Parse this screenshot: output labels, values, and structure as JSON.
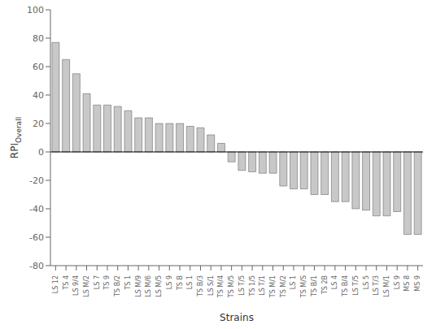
{
  "chart_data": {
    "type": "bar",
    "x_label": "Strains",
    "y_label": "RPI",
    "y_label_sub": "Overall",
    "categories": [
      "LS 12",
      "TS 4",
      "LS 9/4",
      "LS M/2",
      "LS 7",
      "TS 9",
      "TS B/2",
      "TS 1",
      "LS M/9",
      "LS M/6",
      "LS M/5",
      "LS 9",
      "TS B",
      "LS 1",
      "TS B/3",
      "LS S/1",
      "TS M/4",
      "TS M/5",
      "LS T/5",
      "TS 1/5",
      "LS T/1",
      "TS M/1",
      "TS M/2",
      "LS 1",
      "TS M/S",
      "TS B/1",
      "TS 2B",
      "LS 4",
      "TS B/4",
      "LS T/5",
      "LS 5",
      "LS T/3",
      "LS M/1",
      "LS 9",
      "MS 8",
      "MS 9"
    ],
    "values": [
      77,
      65,
      55,
      41,
      33,
      33,
      32,
      29,
      24,
      24,
      20,
      20,
      20,
      18,
      17,
      12,
      6,
      -7,
      -13,
      -14,
      -15,
      -15,
      -24,
      -26,
      -26,
      -30,
      -30,
      -35,
      -35,
      -40,
      -41,
      -45,
      -45,
      -42,
      -58,
      -58
    ],
    "color": "#c8c8c8",
    "ylim": [
      -80,
      100
    ],
    "yticks": [
      -80,
      -60,
      -40,
      -20,
      0,
      20,
      40,
      60,
      80,
      100
    ],
    "grid": false
  }
}
